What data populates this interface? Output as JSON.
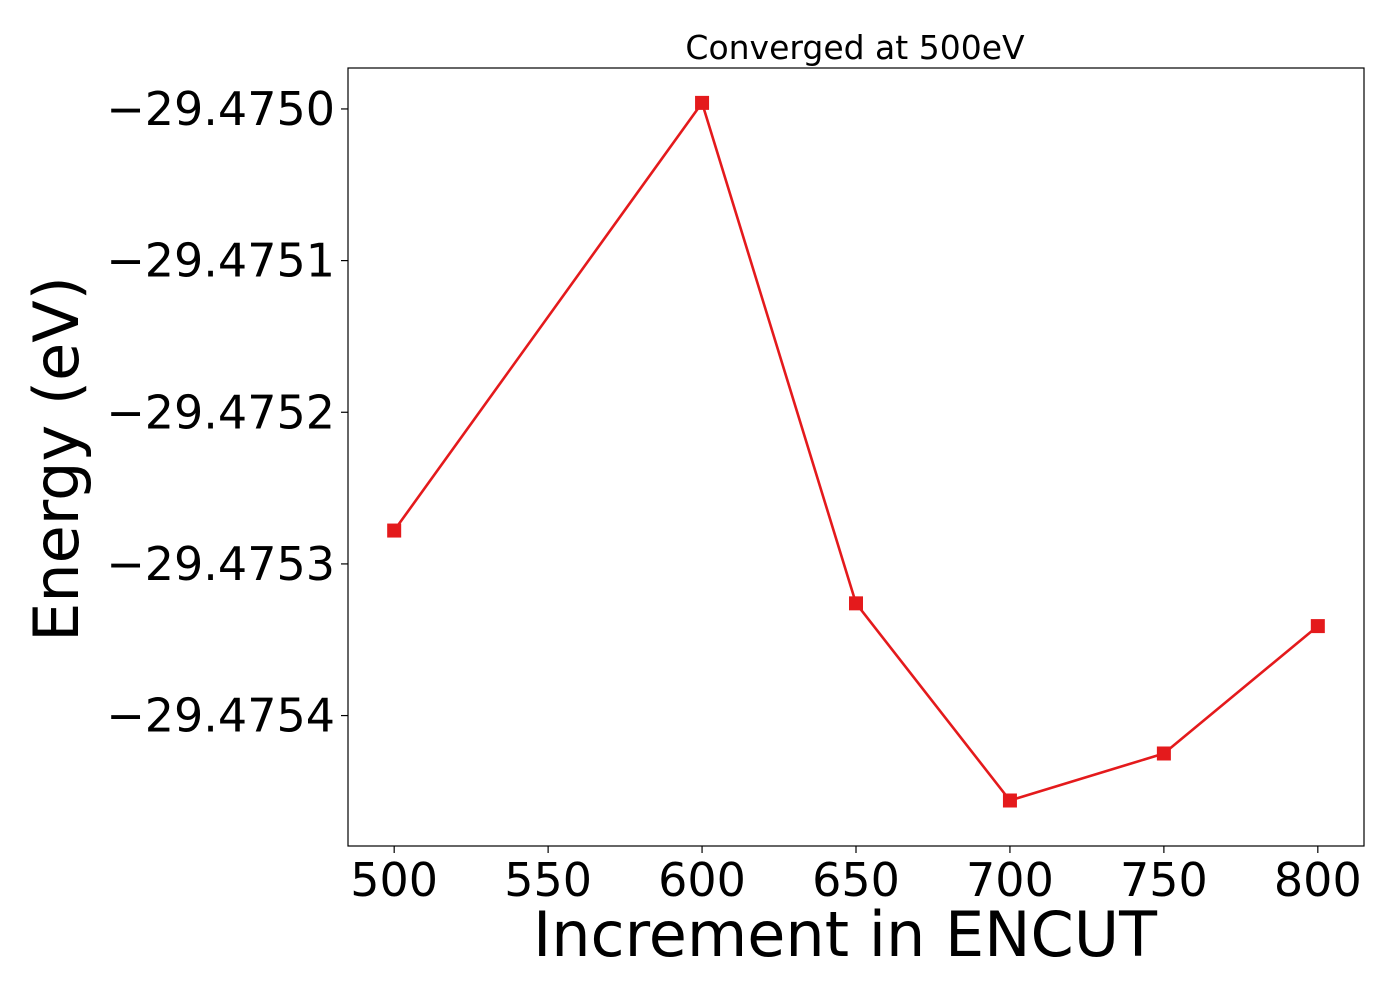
{
  "chart_data": {
    "type": "line",
    "title": "Converged at 500eV",
    "xlabel": "Increment in ENCUT",
    "ylabel": "Energy (eV)",
    "x": [
      500,
      600,
      650,
      700,
      750,
      800
    ],
    "series": [
      {
        "values": [
          -29.475278,
          -29.474996,
          -29.475326,
          -29.475456,
          -29.475425,
          -29.475341
        ],
        "marker": "square",
        "color": "#e41a1c"
      }
    ],
    "xticks": [
      500,
      550,
      600,
      650,
      700,
      750,
      800
    ],
    "xtick_labels": [
      "500",
      "550",
      "600",
      "650",
      "700",
      "750",
      "800"
    ],
    "yticks": [
      -29.475,
      -29.4751,
      -29.4752,
      -29.4753,
      -29.4754
    ],
    "ytick_labels": [
      "−29.4750",
      "−29.4751",
      "−29.4752",
      "−29.4753",
      "−29.4754"
    ],
    "xlim": [
      485,
      815
    ],
    "ylim": [
      -29.475486,
      -29.474973
    ],
    "grid": false,
    "legend": "none"
  }
}
